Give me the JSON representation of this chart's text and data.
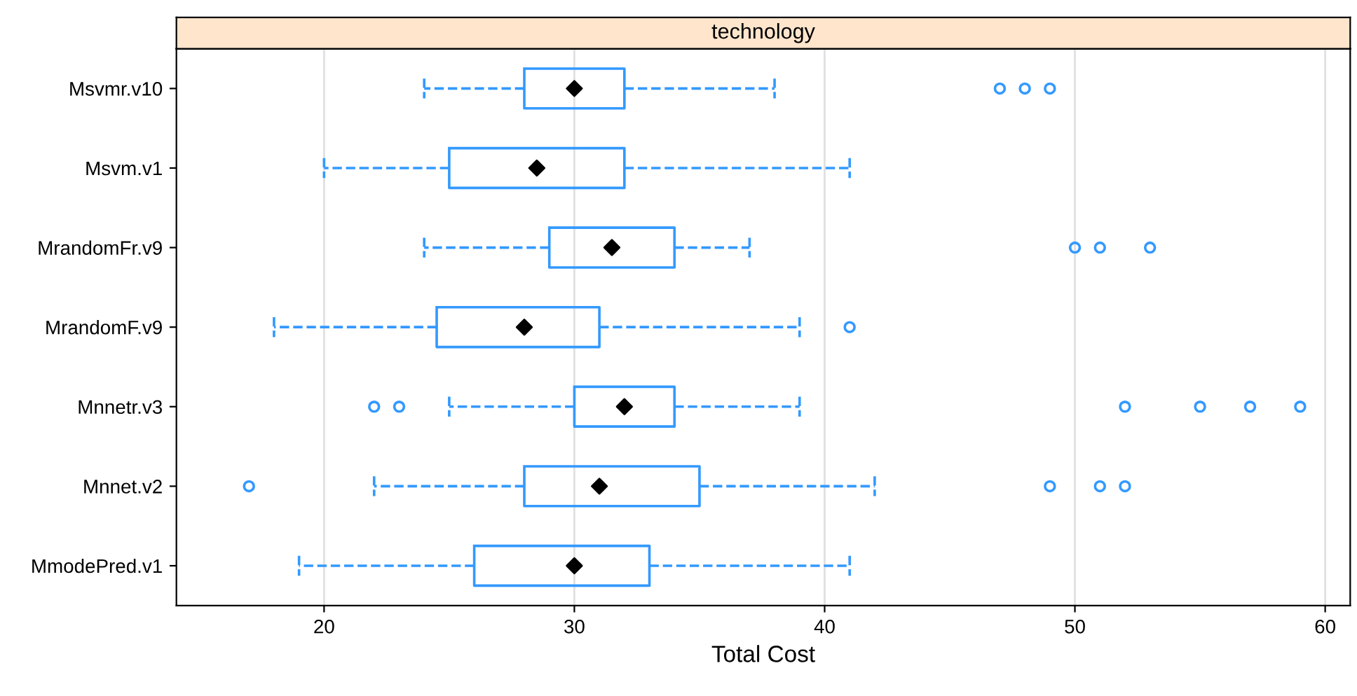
{
  "chart_data": {
    "type": "box",
    "orientation": "horizontal",
    "title": "technology",
    "xlabel": "Total Cost",
    "categories": [
      "Msvmr.v10",
      "Msvm.v1",
      "MrandomFr.v9",
      "MrandomF.v9",
      "Mnnetr.v3",
      "Mnnet.v2",
      "MmodePred.v1"
    ],
    "series": [
      {
        "color": "#3399ff",
        "boxes": [
          {
            "low": 24,
            "q1": 28,
            "median": 30,
            "q3": 32,
            "high": 38,
            "outliers": [
              47,
              48,
              49
            ]
          },
          {
            "low": 20,
            "q1": 25,
            "median": 28.5,
            "q3": 32,
            "high": 41
          },
          {
            "low": 24,
            "q1": 29,
            "median": 31.5,
            "q3": 34,
            "high": 37,
            "outliers": [
              50,
              51,
              53
            ]
          },
          {
            "low": 18,
            "q1": 24.5,
            "median": 28,
            "q3": 31,
            "high": 39,
            "outliers": [
              41
            ]
          },
          {
            "low": 25,
            "q1": 30,
            "median": 32,
            "q3": 34,
            "high": 39,
            "outliers": [
              22,
              23,
              52,
              55,
              57,
              59
            ]
          },
          {
            "low": 22,
            "q1": 28,
            "median": 31,
            "q3": 35,
            "high": 42,
            "outliers": [
              17,
              49,
              51,
              52
            ]
          },
          {
            "low": 19,
            "q1": 26,
            "median": 30,
            "q3": 33,
            "high": 41
          }
        ]
      }
    ],
    "xlim": [
      14.1,
      61
    ],
    "xticks": [
      20,
      30,
      40,
      50,
      60
    ],
    "grid": "x",
    "line_style": "dashed",
    "marker": "circle"
  }
}
